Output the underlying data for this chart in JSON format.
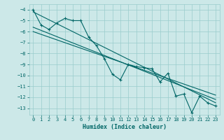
{
  "xlabel": "Humidex (Indice chaleur)",
  "x_data": [
    0,
    1,
    2,
    3,
    4,
    5,
    6,
    7,
    8,
    9,
    10,
    11,
    12,
    13,
    14,
    15,
    16,
    17,
    18,
    19,
    20,
    21,
    22,
    23
  ],
  "main_line": [
    -4.0,
    -5.4,
    -5.8,
    -5.2,
    -4.8,
    -5.0,
    -5.0,
    -6.5,
    -7.3,
    -8.5,
    -9.9,
    -10.4,
    -9.0,
    -9.2,
    -9.3,
    -9.4,
    -10.6,
    -9.8,
    -11.9,
    -11.7,
    -13.4,
    -11.9,
    -12.5,
    -12.8
  ],
  "trend_line1_x": [
    0,
    23
  ],
  "trend_line1_y": [
    -4.2,
    -12.5
  ],
  "trend_line2_x": [
    0,
    23
  ],
  "trend_line2_y": [
    -5.6,
    -12.2
  ],
  "trend_line3_x": [
    0,
    23
  ],
  "trend_line3_y": [
    -6.0,
    -11.8
  ],
  "bg_color": "#cce8e8",
  "grid_color": "#99cccc",
  "line_color": "#006666",
  "ylim": [
    -13.6,
    -3.5
  ],
  "xlim": [
    -0.5,
    23.5
  ],
  "yticks": [
    -4,
    -5,
    -6,
    -7,
    -8,
    -9,
    -10,
    -11,
    -12,
    -13
  ],
  "xticks": [
    0,
    1,
    2,
    3,
    4,
    5,
    6,
    7,
    8,
    9,
    10,
    11,
    12,
    13,
    14,
    15,
    16,
    17,
    18,
    19,
    20,
    21,
    22,
    23
  ],
  "tick_fontsize": 5.0,
  "xlabel_fontsize": 6.0
}
